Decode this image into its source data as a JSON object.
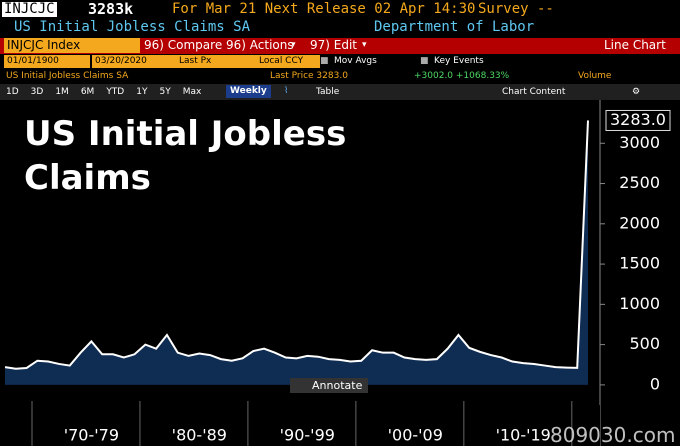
{
  "header": {
    "ticker": "INJCJC",
    "last": "3283k",
    "release": "For Mar 21 Next Release 02 Apr 14:30",
    "survey": "Survey --",
    "name": "US Initial Jobless Claims SA",
    "source": "Department of Labor"
  },
  "toolbar": {
    "security": "INJCJC Index",
    "compare": "96) Compare",
    "actions": "96) Actions",
    "edit": "97) Edit",
    "view": "Line Chart"
  },
  "settings": {
    "start": "01/01/1900",
    "end": "03/20/2020",
    "field": "Last Px",
    "currency": "Local CCY",
    "mov_avgs": "Mov Avgs",
    "key_events": "Key Events"
  },
  "legend_row": {
    "series": "US Initial Jobless Claims SA",
    "last_price": "Last Price 3283.0",
    "change": "+3002.0 +1068.33%",
    "volume": "Volume"
  },
  "ranges": [
    "1D",
    "3D",
    "1M",
    "6M",
    "YTD",
    "1Y",
    "5Y",
    "Max"
  ],
  "frequency": "Weekly",
  "table": "Table",
  "chart_content": "Chart Content",
  "annotate": "Annotate",
  "watermark": "809030.com",
  "chart_data": {
    "type": "area",
    "title": "US Initial Jobless Claims",
    "categories": [
      null,
      null,
      null,
      null,
      null,
      null,
      null,
      null,
      "'70-'79",
      null,
      null,
      null,
      null,
      null,
      null,
      null,
      null,
      null,
      "'80-'89",
      null,
      null,
      null,
      null,
      null,
      null,
      null,
      null,
      null,
      "'90-'99",
      null,
      null,
      null,
      null,
      null,
      null,
      null,
      null,
      null,
      "'00-'09",
      null,
      null,
      null,
      null,
      null,
      null,
      null,
      null,
      null,
      "'10-'19",
      null,
      null,
      null,
      null,
      null,
      null
    ],
    "values": [
      220,
      200,
      210,
      300,
      290,
      260,
      240,
      400,
      540,
      380,
      380,
      340,
      380,
      500,
      450,
      620,
      400,
      360,
      390,
      370,
      320,
      300,
      330,
      420,
      450,
      400,
      340,
      330,
      360,
      350,
      320,
      310,
      290,
      300,
      430,
      400,
      400,
      340,
      320,
      310,
      320,
      450,
      620,
      460,
      410,
      370,
      340,
      290,
      270,
      260,
      240,
      220,
      215,
      211,
      3283
    ],
    "value_labels": [
      null,
      null,
      null,
      null,
      null,
      null,
      null,
      null,
      null,
      null,
      null,
      null,
      null,
      null,
      null,
      null,
      null,
      null,
      null,
      null,
      null,
      null,
      null,
      null,
      null,
      null,
      null,
      null,
      null,
      null,
      null,
      null,
      null,
      null,
      null,
      null,
      null,
      null,
      null,
      null,
      null,
      null,
      null,
      null,
      null,
      null,
      null,
      null,
      null,
      null,
      null,
      null,
      null,
      null,
      "3283.0"
    ],
    "color": "#ffffff",
    "fill": "#0f2c52",
    "ylim": [
      -200,
      3500
    ],
    "yticks": [
      0,
      500,
      1000,
      1500,
      2000,
      2500,
      3000
    ],
    "grid": false
  }
}
